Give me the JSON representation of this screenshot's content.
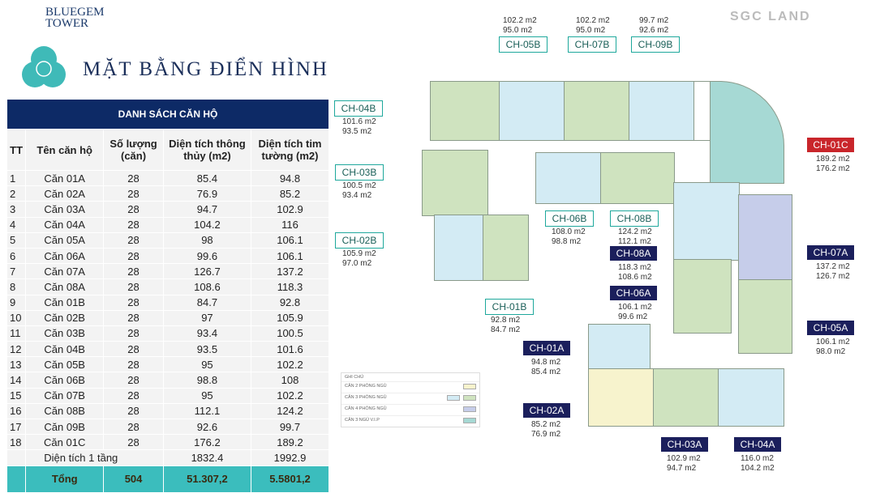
{
  "brand": {
    "line1": "BLUEGEM",
    "line2": "TOWER",
    "partner_logo": "SGC LAND"
  },
  "page_title": "MẶT BẰNG ĐIỂN HÌNH",
  "table": {
    "caption": "DANH SÁCH CĂN HỘ",
    "headers": [
      "TT",
      "Tên căn hộ",
      "Số lượng (căn)",
      "Diện tích thông thủy (m2)",
      "Diện tích tim tường (m2)"
    ],
    "rows": [
      [
        "1",
        "Căn 01A",
        "28",
        "85.4",
        "94.8"
      ],
      [
        "2",
        "Căn 02A",
        "28",
        "76.9",
        "85.2"
      ],
      [
        "3",
        "Căn 03A",
        "28",
        "94.7",
        "102.9"
      ],
      [
        "4",
        "Căn 04A",
        "28",
        "104.2",
        "116"
      ],
      [
        "5",
        "Căn 05A",
        "28",
        "98",
        "106.1"
      ],
      [
        "6",
        "Căn 06A",
        "28",
        "99.6",
        "106.1"
      ],
      [
        "7",
        "Căn 07A",
        "28",
        "126.7",
        "137.2"
      ],
      [
        "8",
        "Căn 08A",
        "28",
        "108.6",
        "118.3"
      ],
      [
        "9",
        "Căn 01B",
        "28",
        "84.7",
        "92.8"
      ],
      [
        "10",
        "Căn 02B",
        "28",
        "97",
        "105.9"
      ],
      [
        "11",
        "Căn 03B",
        "28",
        "93.4",
        "100.5"
      ],
      [
        "12",
        "Căn 04B",
        "28",
        "93.5",
        "101.6"
      ],
      [
        "13",
        "Căn 05B",
        "28",
        "95",
        "102.2"
      ],
      [
        "14",
        "Căn 06B",
        "28",
        "98.8",
        "108"
      ],
      [
        "15",
        "Căn 07B",
        "28",
        "95",
        "102.2"
      ],
      [
        "16",
        "Căn 08B",
        "28",
        "112.1",
        "124.2"
      ],
      [
        "17",
        "Căn 09B",
        "28",
        "92.6",
        "99.7"
      ],
      [
        "18",
        "Căn 01C",
        "28",
        "176.2",
        "189.2"
      ]
    ],
    "floor_area": {
      "label": "Diện tích 1 tầng",
      "net": "1832.4",
      "gross": "1992.9"
    },
    "total": {
      "label": "Tổng",
      "count": "504",
      "net": "51.307,2",
      "gross": "5.5801,2"
    }
  },
  "units": [
    {
      "code": "CH-05B",
      "gross": "102.2 m2",
      "net": "95.0 m2",
      "style": "lt"
    },
    {
      "code": "CH-07B",
      "gross": "102.2 m2",
      "net": "95.0 m2",
      "style": "lt"
    },
    {
      "code": "CH-09B",
      "gross": "99.7 m2",
      "net": "92.6 m2",
      "style": "lt"
    },
    {
      "code": "CH-04B",
      "gross": "101.6 m2",
      "net": "93.5 m2",
      "style": "lt"
    },
    {
      "code": "CH-03B",
      "gross": "100.5 m2",
      "net": "93.4 m2",
      "style": "lt"
    },
    {
      "code": "CH-02B",
      "gross": "105.9 m2",
      "net": "97.0 m2",
      "style": "lt"
    },
    {
      "code": "CH-01B",
      "gross": "92.8 m2",
      "net": "84.7 m2",
      "style": "lt"
    },
    {
      "code": "CH-06B",
      "gross": "108.0 m2",
      "net": "98.8 m2",
      "style": "lt"
    },
    {
      "code": "CH-08B",
      "gross": "124.2 m2",
      "net": "112.1 m2",
      "style": "lt"
    },
    {
      "code": "CH-08A",
      "gross": "118.3 m2",
      "net": "108.6 m2",
      "style": "dk"
    },
    {
      "code": "CH-06A",
      "gross": "106.1 m2",
      "net": "99.6 m2",
      "style": "dk"
    },
    {
      "code": "CH-01A",
      "gross": "94.8 m2",
      "net": "85.4 m2",
      "style": "dk"
    },
    {
      "code": "CH-02A",
      "gross": "85.2 m2",
      "net": "76.9 m2",
      "style": "dk"
    },
    {
      "code": "CH-03A",
      "gross": "102.9 m2",
      "net": "94.7 m2",
      "style": "dk"
    },
    {
      "code": "CH-04A",
      "gross": "116.0 m2",
      "net": "104.2 m2",
      "style": "dk"
    },
    {
      "code": "CH-05A",
      "gross": "106.1 m2",
      "net": "98.0 m2",
      "style": "dk"
    },
    {
      "code": "CH-07A",
      "gross": "137.2 m2",
      "net": "126.7 m2",
      "style": "dk"
    },
    {
      "code": "CH-01C",
      "gross": "189.2 m2",
      "net": "176.2 m2",
      "style": "rd"
    }
  ],
  "legend": {
    "title": "GHI CHÚ",
    "items": [
      {
        "label": "CĂN 2 PHÒNG NGỦ",
        "colors": [
          "#f7f3cd"
        ]
      },
      {
        "label": "CĂN 3 PHÒNG NGỦ",
        "colors": [
          "#d3ebf4",
          "#cfe3bf"
        ]
      },
      {
        "label": "CĂN 4 PHÒNG NGỦ",
        "colors": [
          "#c6cdea"
        ]
      },
      {
        "label": "CĂN 3 NGỦ V.I.P",
        "colors": [
          "#a6d9d4"
        ]
      }
    ]
  },
  "colors": {
    "navy": "#0d2a66",
    "teal": "#3bbdbd",
    "accent_red": "#c9262b",
    "label_dark": "#1b1f5c"
  }
}
